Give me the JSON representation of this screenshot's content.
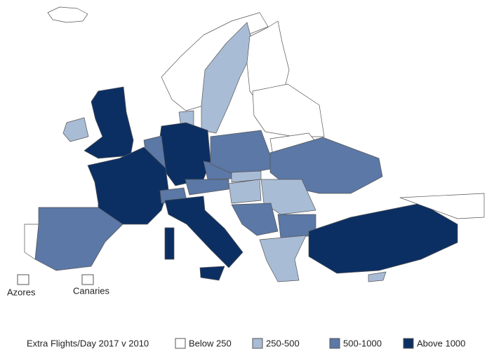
{
  "legend": {
    "title": "Extra Flights/Day 2017 v 2010",
    "items": [
      {
        "label": "Below 250",
        "color": "#ffffff"
      },
      {
        "label": "250-500",
        "color": "#a9bcd6"
      },
      {
        "label": "500-1000",
        "color": "#5b78a6"
      },
      {
        "label": "Above 1000",
        "color": "#0c2f63"
      }
    ]
  },
  "insets": [
    "Azores",
    "Canaries"
  ]
}
